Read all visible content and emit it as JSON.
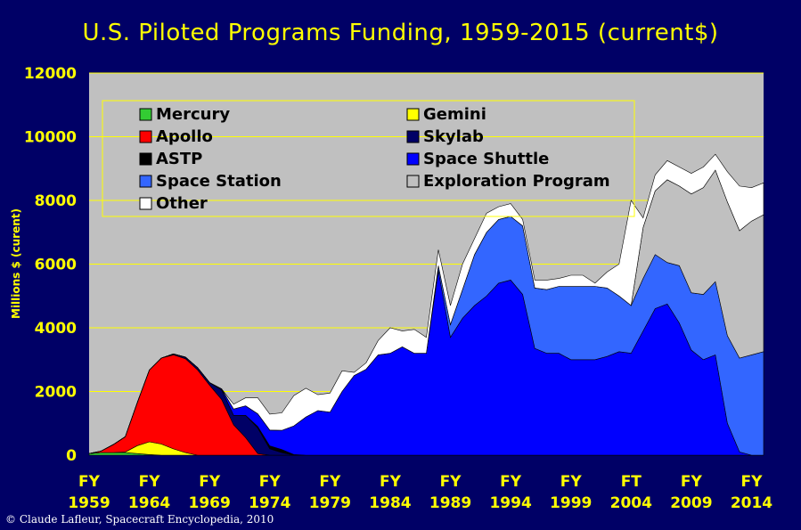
{
  "chart_data": {
    "type": "area",
    "stacked": true,
    "title": "U.S. Piloted Programs Funding, 1959-2015 (current$)",
    "ylabel": "Millions $ (curent)",
    "xlabel": "",
    "ylim": [
      0,
      12000
    ],
    "yticks": [
      "0",
      "2000",
      "4000",
      "6000",
      "8000",
      "10000",
      "12000"
    ],
    "xtick_labels": [
      {
        "top": "FY",
        "bottom": "1959"
      },
      {
        "top": "FY",
        "bottom": "1964"
      },
      {
        "top": "FY",
        "bottom": "1969"
      },
      {
        "top": "FY",
        "bottom": "1974"
      },
      {
        "top": "FY",
        "bottom": "1979"
      },
      {
        "top": "FY",
        "bottom": "1984"
      },
      {
        "top": "FY",
        "bottom": "1989"
      },
      {
        "top": "FY",
        "bottom": "1994"
      },
      {
        "top": "FY",
        "bottom": "1999"
      },
      {
        "top": "FT",
        "bottom": "2004"
      },
      {
        "top": "FY",
        "bottom": "2009"
      },
      {
        "top": "FY",
        "bottom": "2014"
      }
    ],
    "plot_background": "#c0c0c0",
    "gridlines": "horizontal, yellow",
    "legend_position": "top-left, inside plot",
    "x": [
      1959,
      1960,
      1961,
      1962,
      1963,
      1964,
      1965,
      1966,
      1967,
      1968,
      1969,
      1970,
      1971,
      1972,
      1973,
      1974,
      1975,
      1976,
      1977,
      1978,
      1979,
      1980,
      1981,
      1982,
      1983,
      1984,
      1985,
      1986,
      1987,
      1988,
      1989,
      1990,
      1991,
      1992,
      1993,
      1994,
      1995,
      1996,
      1997,
      1998,
      1999,
      2000,
      2001,
      2002,
      2003,
      2004,
      2005,
      2006,
      2007,
      2008,
      2009,
      2010,
      2011,
      2012,
      2013,
      2014,
      2015
    ],
    "series": [
      {
        "name": "Mercury",
        "color": "#33cc33",
        "values": [
          50,
          80,
          80,
          80,
          50,
          20,
          0,
          0,
          0,
          0,
          0,
          0,
          0,
          0,
          0,
          0,
          0,
          0,
          0,
          0,
          0,
          0,
          0,
          0,
          0,
          0,
          0,
          0,
          0,
          0,
          0,
          0,
          0,
          0,
          0,
          0,
          0,
          0,
          0,
          0,
          0,
          0,
          0,
          0,
          0,
          0,
          0,
          0,
          0,
          0,
          0,
          0,
          0,
          0,
          0,
          0,
          0
        ]
      },
      {
        "name": "Gemini",
        "color": "#ffff00",
        "values": [
          0,
          0,
          0,
          20,
          250,
          400,
          350,
          200,
          80,
          0,
          0,
          0,
          0,
          0,
          0,
          0,
          0,
          0,
          0,
          0,
          0,
          0,
          0,
          0,
          0,
          0,
          0,
          0,
          0,
          0,
          0,
          0,
          0,
          0,
          0,
          0,
          0,
          0,
          0,
          0,
          0,
          0,
          0,
          0,
          0,
          0,
          0,
          0,
          0,
          0,
          0,
          0,
          0,
          0,
          0,
          0,
          0
        ]
      },
      {
        "name": "Apollo",
        "color": "#ff0000",
        "values": [
          0,
          50,
          250,
          480,
          1350,
          2250,
          2700,
          2950,
          2950,
          2680,
          2200,
          1750,
          950,
          550,
          50,
          0,
          0,
          0,
          0,
          0,
          0,
          0,
          0,
          0,
          0,
          0,
          0,
          0,
          0,
          0,
          0,
          0,
          0,
          0,
          0,
          0,
          0,
          0,
          0,
          0,
          0,
          0,
          0,
          0,
          0,
          0,
          0,
          0,
          0,
          0,
          0,
          0,
          0,
          0,
          0,
          0,
          0
        ]
      },
      {
        "name": "Skylab",
        "color": "#000066",
        "values": [
          0,
          0,
          0,
          0,
          0,
          0,
          0,
          30,
          50,
          70,
          80,
          300,
          300,
          700,
          800,
          200,
          80,
          0,
          0,
          0,
          0,
          0,
          0,
          0,
          0,
          0,
          0,
          0,
          0,
          0,
          0,
          0,
          0,
          0,
          0,
          0,
          0,
          0,
          0,
          0,
          0,
          0,
          0,
          0,
          0,
          0,
          0,
          0,
          0,
          0,
          0,
          0,
          0,
          0,
          0,
          0,
          0
        ]
      },
      {
        "name": "ASTP",
        "color": "#000000",
        "values": [
          0,
          0,
          0,
          0,
          0,
          0,
          0,
          0,
          0,
          0,
          0,
          0,
          0,
          0,
          50,
          90,
          100,
          20,
          0,
          0,
          0,
          0,
          0,
          0,
          0,
          0,
          0,
          0,
          0,
          0,
          0,
          0,
          0,
          0,
          0,
          0,
          0,
          0,
          0,
          0,
          0,
          0,
          0,
          0,
          0,
          0,
          0,
          0,
          0,
          0,
          0,
          0,
          0,
          0,
          0,
          0,
          0
        ]
      },
      {
        "name": "Space Shuttle",
        "color": "#0000ff",
        "values": [
          0,
          0,
          0,
          0,
          0,
          0,
          0,
          0,
          0,
          0,
          0,
          30,
          200,
          300,
          400,
          500,
          600,
          900,
          1200,
          1400,
          1350,
          2000,
          2500,
          2700,
          3150,
          3200,
          3400,
          3200,
          3200,
          5800,
          3700,
          4300,
          4700,
          5000,
          5400,
          5500,
          5050,
          3350,
          3200,
          3200,
          3000,
          3000,
          3000,
          3100,
          3250,
          3200,
          3900,
          4600,
          4750,
          4150,
          3300,
          3000,
          3150,
          1000,
          100,
          0,
          0
        ]
      },
      {
        "name": "Space Station",
        "color": "#3366ff",
        "values": [
          0,
          0,
          0,
          0,
          0,
          0,
          0,
          0,
          0,
          0,
          0,
          0,
          0,
          0,
          0,
          0,
          0,
          0,
          0,
          0,
          0,
          0,
          0,
          0,
          0,
          0,
          0,
          0,
          0,
          150,
          400,
          900,
          1600,
          2000,
          2000,
          2000,
          2150,
          1900,
          2000,
          2100,
          2300,
          2300,
          2300,
          2150,
          1750,
          1500,
          1650,
          1700,
          1300,
          1800,
          1800,
          2050,
          2300,
          2750,
          2950,
          3150,
          3250
        ]
      },
      {
        "name": "Exploration Program",
        "color": "#c0c0c0",
        "values": [
          0,
          0,
          0,
          0,
          0,
          0,
          0,
          0,
          0,
          0,
          0,
          0,
          0,
          0,
          0,
          0,
          0,
          0,
          0,
          0,
          0,
          0,
          0,
          0,
          0,
          0,
          0,
          0,
          0,
          0,
          0,
          0,
          0,
          0,
          0,
          0,
          0,
          0,
          0,
          0,
          0,
          0,
          0,
          0,
          0,
          0,
          1600,
          2000,
          2600,
          2500,
          3100,
          3350,
          3500,
          4200,
          4000,
          4200,
          4300
        ]
      },
      {
        "name": "Other",
        "color": "#ffffff",
        "values": [
          0,
          0,
          0,
          0,
          0,
          0,
          0,
          0,
          0,
          0,
          0,
          0,
          150,
          250,
          500,
          500,
          550,
          950,
          900,
          500,
          600,
          650,
          100,
          200,
          450,
          800,
          500,
          750,
          500,
          500,
          600,
          800,
          500,
          600,
          400,
          400,
          200,
          250,
          300,
          250,
          350,
          350,
          100,
          500,
          1000,
          3300,
          300,
          500,
          600,
          600,
          650,
          650,
          500,
          950,
          1400,
          1050,
          1000
        ]
      }
    ]
  },
  "credit": "© Claude Lafleur, Spacecraft Encyclopedia, 2010"
}
